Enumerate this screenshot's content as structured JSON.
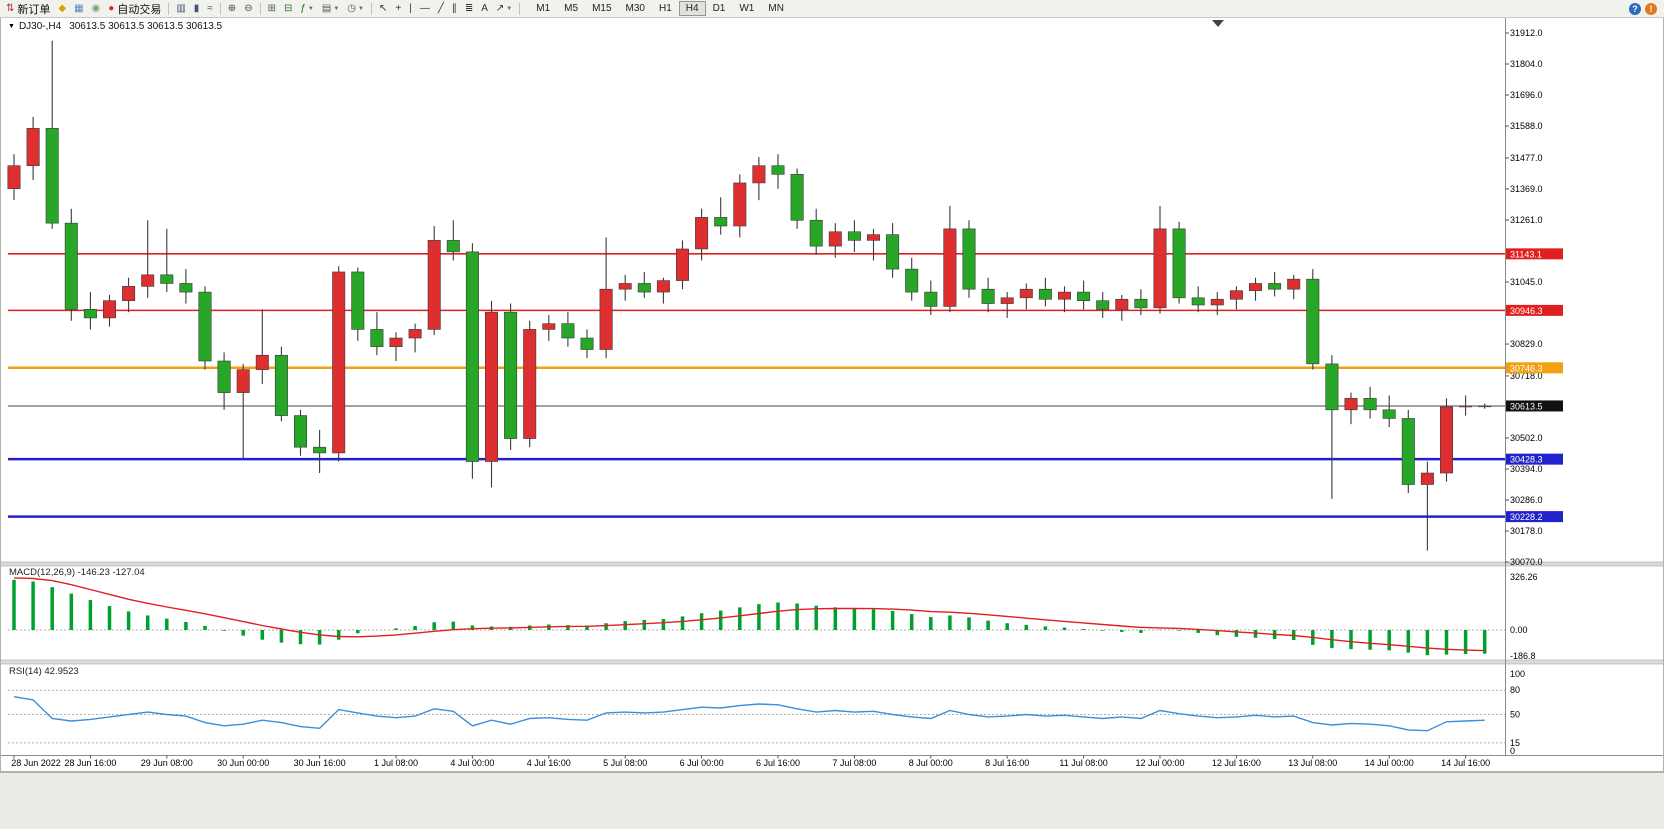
{
  "toolbar": {
    "buttons": [
      {
        "name": "new-order",
        "glyph": "⇅",
        "glyph_color": "#c03030",
        "label": "新订单"
      },
      {
        "name": "metaeditor",
        "glyph": "◆",
        "glyph_color": "#d9a400"
      },
      {
        "name": "new-chart",
        "glyph": "▦",
        "glyph_color": "#5a87c0"
      },
      {
        "name": "strategy-tester",
        "glyph": "◉",
        "glyph_color": "#7a9a7a"
      },
      {
        "name": "auto-trading",
        "glyph": "●",
        "glyph_color": "#cc3333",
        "label": "自动交易"
      },
      {
        "sep": true
      },
      {
        "name": "bar-chart",
        "glyph": "▥",
        "glyph_color": "#445577"
      },
      {
        "name": "candlestick-chart",
        "glyph": "▮",
        "glyph_color": "#445577"
      },
      {
        "name": "line-chart",
        "glyph": "≈",
        "glyph_color": "#445577"
      },
      {
        "sep": true
      },
      {
        "name": "zoom-in",
        "glyph": "⊕",
        "glyph_color": "#444444"
      },
      {
        "name": "zoom-out",
        "glyph": "⊖",
        "glyph_color": "#444444"
      },
      {
        "sep": true
      },
      {
        "name": "tile-windows",
        "glyph": "⊞",
        "glyph_color": "#446644"
      },
      {
        "name": "auto-arrange",
        "glyph": "⊟",
        "glyph_color": "#446644"
      },
      {
        "name": "indicators",
        "glyph": "ƒ",
        "glyph_color": "#117711",
        "caret": true
      },
      {
        "name": "templates",
        "glyph": "▤",
        "glyph_color": "#555555",
        "caret": true
      },
      {
        "name": "period",
        "glyph": "◷",
        "glyph_color": "#555555",
        "caret": true
      },
      {
        "sep": true
      },
      {
        "name": "cursor",
        "glyph": "↖",
        "glyph_color": "#333333"
      },
      {
        "name": "crosshair",
        "glyph": "+",
        "glyph_color": "#333333"
      },
      {
        "name": "vertical-line",
        "glyph": "|",
        "glyph_color": "#333333"
      },
      {
        "name": "horizontal-line",
        "glyph": "—",
        "glyph_color": "#333333"
      },
      {
        "name": "trendline",
        "glyph": "╱",
        "glyph_color": "#333333"
      },
      {
        "name": "channel",
        "glyph": "∥",
        "glyph_color": "#333333"
      },
      {
        "name": "fibonacci",
        "glyph": "≣",
        "glyph_color": "#333333"
      },
      {
        "name": "text",
        "glyph": "A",
        "glyph_color": "#333333"
      },
      {
        "name": "arrows",
        "glyph": "↗",
        "glyph_color": "#333333",
        "caret": true
      },
      {
        "sep": true
      }
    ],
    "timeframes": [
      "M1",
      "M5",
      "M15",
      "M30",
      "H1",
      "H4",
      "D1",
      "W1",
      "MN"
    ],
    "active_timeframe": "H4",
    "right_buttons": [
      {
        "name": "help",
        "glyph": "?",
        "bg": "#2a6bc0"
      },
      {
        "name": "notifications",
        "glyph": "!",
        "bg": "#e07820"
      }
    ]
  },
  "chart": {
    "symbol_period": "DJ30-,H4",
    "ohlc_text": "30613.5 30613.5 30613.5 30613.5",
    "price_axis_ticks": [
      31912,
      31804,
      31696,
      31588,
      31477,
      31369,
      31261,
      31045,
      30829,
      30718,
      30502,
      30394,
      30286,
      30178,
      30070
    ],
    "levels": [
      {
        "value": 31143.1,
        "label": "31143.1",
        "line": "#e02020",
        "width": 1.6
      },
      {
        "value": 30946.3,
        "label": "30946.3",
        "line": "#e02020",
        "width": 1.6
      },
      {
        "value": 30746.3,
        "label": "30746.3",
        "line": "#f0a010",
        "width": 2.5
      },
      {
        "value": 30428.3,
        "label": "30428.3",
        "line": "#2222cc",
        "width": 2.5
      },
      {
        "value": 30228.2,
        "label": "30228.2",
        "line": "#2222cc",
        "width": 2.5
      }
    ],
    "bid": {
      "value": 30613.5,
      "label": "30613.5",
      "line": "#444444",
      "width": 1,
      "tag": "#111111"
    }
  },
  "macd": {
    "title": "MACD(12,26,9)",
    "values": "-146.23 -127.04",
    "axis": [
      {
        "v": 326.26,
        "t": "326.26"
      },
      {
        "v": 0,
        "t": "0.00"
      },
      {
        "v": -186.8,
        "t": "-186.8"
      }
    ]
  },
  "rsi": {
    "title": "RSI(14)",
    "value": "42.9523",
    "axis": [
      {
        "v": 100,
        "t": "100"
      },
      {
        "v": 80,
        "t": "80"
      },
      {
        "v": 50,
        "t": "50"
      },
      {
        "v": 15,
        "t": "15"
      },
      {
        "v": 0,
        "t": "0"
      }
    ],
    "levels": [
      80,
      50,
      15
    ]
  },
  "time_axis": {
    "labels": [
      "28 Jun 2022",
      "28 Jun 16:00",
      "29 Jun 08:00",
      "30 Jun 00:00",
      "30 Jun 16:00",
      "1 Jul 08:00",
      "4 Jul 00:00",
      "4 Jul 16:00",
      "5 Jul 08:00",
      "6 Jul 00:00",
      "6 Jul 16:00",
      "7 Jul 08:00",
      "8 Jul 00:00",
      "8 Jul 16:00",
      "11 Jul 08:00",
      "12 Jul 00:00",
      "12 Jul 16:00",
      "13 Jul 08:00",
      "14 Jul 00:00",
      "14 Jul 16:00"
    ]
  },
  "colors": {
    "up": "#dd2f2f",
    "down": "#27a627",
    "wick": "#3a3a3a",
    "macd_hist": "#00a030",
    "macd_signal": "#e02020",
    "rsi_line": "#3b8ede"
  },
  "chart_data": {
    "type": "candlestick",
    "symbol": "DJ30-",
    "timeframe": "H4",
    "price_range": [
      30070,
      31912
    ],
    "current_price": 30613.5,
    "candles": [
      [
        31370,
        31490,
        31330,
        31450
      ],
      [
        31450,
        31620,
        31400,
        31580
      ],
      [
        31580,
        31885,
        31230,
        31250
      ],
      [
        31250,
        31300,
        30910,
        30950
      ],
      [
        30950,
        31010,
        30880,
        30920
      ],
      [
        30920,
        31000,
        30890,
        30980
      ],
      [
        30980,
        31060,
        30940,
        31030
      ],
      [
        31030,
        31260,
        30990,
        31070
      ],
      [
        31070,
        31230,
        31010,
        31040
      ],
      [
        31040,
        31090,
        30970,
        31010
      ],
      [
        31010,
        31030,
        30740,
        30770
      ],
      [
        30770,
        30800,
        30600,
        30660
      ],
      [
        30660,
        30760,
        30430,
        30740
      ],
      [
        30740,
        30950,
        30690,
        30790
      ],
      [
        30790,
        30820,
        30560,
        30580
      ],
      [
        30580,
        30600,
        30440,
        30470
      ],
      [
        30470,
        30530,
        30380,
        30450
      ],
      [
        30450,
        31100,
        30420,
        31080
      ],
      [
        31080,
        31095,
        30840,
        30880
      ],
      [
        30880,
        30940,
        30790,
        30820
      ],
      [
        30820,
        30870,
        30770,
        30850
      ],
      [
        30850,
        30900,
        30800,
        30880
      ],
      [
        30880,
        31240,
        30860,
        31190
      ],
      [
        31190,
        31260,
        31120,
        31150
      ],
      [
        31150,
        31180,
        30360,
        30420
      ],
      [
        30420,
        30980,
        30330,
        30940
      ],
      [
        30940,
        30970,
        30460,
        30500
      ],
      [
        30500,
        30910,
        30470,
        30880
      ],
      [
        30880,
        30930,
        30840,
        30900
      ],
      [
        30900,
        30940,
        30820,
        30850
      ],
      [
        30850,
        30880,
        30780,
        30810
      ],
      [
        30810,
        31200,
        30780,
        31020
      ],
      [
        31020,
        31070,
        30980,
        31040
      ],
      [
        31040,
        31080,
        30990,
        31010
      ],
      [
        31010,
        31060,
        30970,
        31050
      ],
      [
        31050,
        31190,
        31020,
        31160
      ],
      [
        31160,
        31300,
        31120,
        31270
      ],
      [
        31270,
        31340,
        31210,
        31240
      ],
      [
        31240,
        31420,
        31200,
        31390
      ],
      [
        31390,
        31480,
        31330,
        31450
      ],
      [
        31450,
        31490,
        31370,
        31420
      ],
      [
        31420,
        31440,
        31230,
        31260
      ],
      [
        31260,
        31300,
        31140,
        31170
      ],
      [
        31170,
        31250,
        31130,
        31220
      ],
      [
        31220,
        31260,
        31150,
        31190
      ],
      [
        31190,
        31230,
        31120,
        31210
      ],
      [
        31210,
        31250,
        31060,
        31090
      ],
      [
        31090,
        31130,
        30980,
        31010
      ],
      [
        31010,
        31050,
        30930,
        30960
      ],
      [
        30960,
        31310,
        30940,
        31230
      ],
      [
        31230,
        31260,
        30990,
        31020
      ],
      [
        31020,
        31060,
        30940,
        30970
      ],
      [
        30970,
        31010,
        30920,
        30990
      ],
      [
        30990,
        31040,
        30950,
        31020
      ],
      [
        31020,
        31060,
        30960,
        30985
      ],
      [
        30985,
        31030,
        30940,
        31010
      ],
      [
        31010,
        31050,
        30950,
        30980
      ],
      [
        30980,
        31010,
        30920,
        30950
      ],
      [
        30950,
        31000,
        30910,
        30985
      ],
      [
        30985,
        31020,
        30930,
        30955
      ],
      [
        30955,
        31310,
        30935,
        31230
      ],
      [
        31230,
        31255,
        30970,
        30990
      ],
      [
        30990,
        31030,
        30940,
        30965
      ],
      [
        30965,
        31010,
        30930,
        30985
      ],
      [
        30985,
        31030,
        30950,
        31015
      ],
      [
        31015,
        31060,
        30980,
        31040
      ],
      [
        31040,
        31080,
        30995,
        31020
      ],
      [
        31020,
        31070,
        30985,
        31055
      ],
      [
        31055,
        31090,
        30740,
        30760
      ],
      [
        30760,
        30790,
        30290,
        30600
      ],
      [
        30600,
        30660,
        30550,
        30640
      ],
      [
        30640,
        30680,
        30570,
        30600
      ],
      [
        30600,
        30650,
        30540,
        30570
      ],
      [
        30570,
        30600,
        30310,
        30340
      ],
      [
        30340,
        30420,
        30110,
        30380
      ],
      [
        30380,
        30640,
        30350,
        30610
      ],
      [
        30610,
        30650,
        30580,
        30614
      ],
      [
        30614,
        30622,
        30604,
        30613.5
      ]
    ],
    "macd_histogram": [
      310,
      300,
      265,
      225,
      185,
      148,
      115,
      90,
      70,
      50,
      25,
      -5,
      -35,
      -60,
      -78,
      -88,
      -90,
      -60,
      -20,
      0,
      10,
      25,
      48,
      52,
      28,
      22,
      20,
      28,
      34,
      30,
      28,
      42,
      55,
      62,
      68,
      84,
      104,
      120,
      140,
      160,
      170,
      164,
      150,
      140,
      134,
      128,
      118,
      98,
      80,
      90,
      78,
      58,
      42,
      32,
      22,
      15,
      6,
      -4,
      -12,
      -18,
      2,
      -4,
      -18,
      -32,
      -42,
      -48,
      -56,
      -62,
      -92,
      -112,
      -118,
      -122,
      -126,
      -140,
      -156,
      -152,
      -148,
      -146.23
    ],
    "macd_signal": [
      322,
      318,
      305,
      280,
      250,
      220,
      190,
      165,
      142,
      122,
      100,
      76,
      52,
      28,
      6,
      -14,
      -30,
      -40,
      -42,
      -38,
      -30,
      -20,
      -8,
      2,
      8,
      11,
      13,
      16,
      20,
      22,
      23,
      27,
      33,
      39,
      45,
      53,
      63,
      75,
      88,
      102,
      116,
      126,
      131,
      133,
      133,
      132,
      129,
      123,
      114,
      110,
      103,
      94,
      84,
      73,
      63,
      53,
      44,
      34,
      25,
      16,
      13,
      10,
      4,
      -4,
      -12,
      -19,
      -27,
      -34,
      -46,
      -60,
      -72,
      -82,
      -91,
      -101,
      -112,
      -119,
      -124,
      -127.04
    ],
    "rsi": [
      72,
      68,
      45,
      42,
      44,
      47,
      50,
      53,
      50,
      48,
      40,
      36,
      38,
      43,
      40,
      35,
      33,
      56,
      52,
      48,
      46,
      48,
      57,
      54,
      36,
      43,
      38,
      45,
      46,
      44,
      43,
      52,
      53,
      52,
      53,
      56,
      59,
      58,
      61,
      63,
      62,
      57,
      53,
      55,
      53,
      54,
      50,
      47,
      45,
      55,
      50,
      47,
      48,
      50,
      48,
      49,
      47,
      45,
      47,
      45,
      55,
      51,
      48,
      46,
      47,
      49,
      47,
      48,
      40,
      37,
      39,
      38,
      36,
      31,
      30,
      41,
      42,
      42.95
    ]
  }
}
